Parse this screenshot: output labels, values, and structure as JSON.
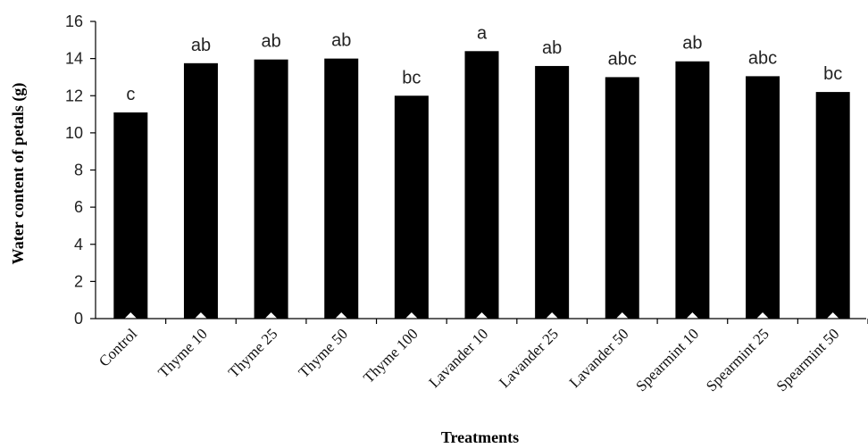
{
  "chart_data": {
    "type": "bar",
    "categories": [
      "Control",
      "Thyme 10",
      "Thyme 25",
      "Thyme 50",
      "Thyme 100",
      "Lavander 10",
      "Lavander 25",
      "Lavander 50",
      "Spearmint 10",
      "Spearmint 25",
      "Spearmint 50"
    ],
    "values": [
      11.1,
      13.75,
      13.95,
      14.0,
      12.0,
      14.4,
      13.6,
      13.0,
      13.85,
      13.05,
      12.2
    ],
    "annotations": [
      "c",
      "ab",
      "ab",
      "ab",
      "bc",
      "a",
      "ab",
      "abc",
      "ab",
      "abc",
      "bc"
    ],
    "title": "",
    "xlabel": "Treatments",
    "ylabel": "Water content of petals (g)",
    "ylim": [
      0,
      16
    ],
    "yticks": [
      0,
      2,
      4,
      6,
      8,
      10,
      12,
      14,
      16
    ],
    "grid": false,
    "bar_color": "#000000"
  }
}
